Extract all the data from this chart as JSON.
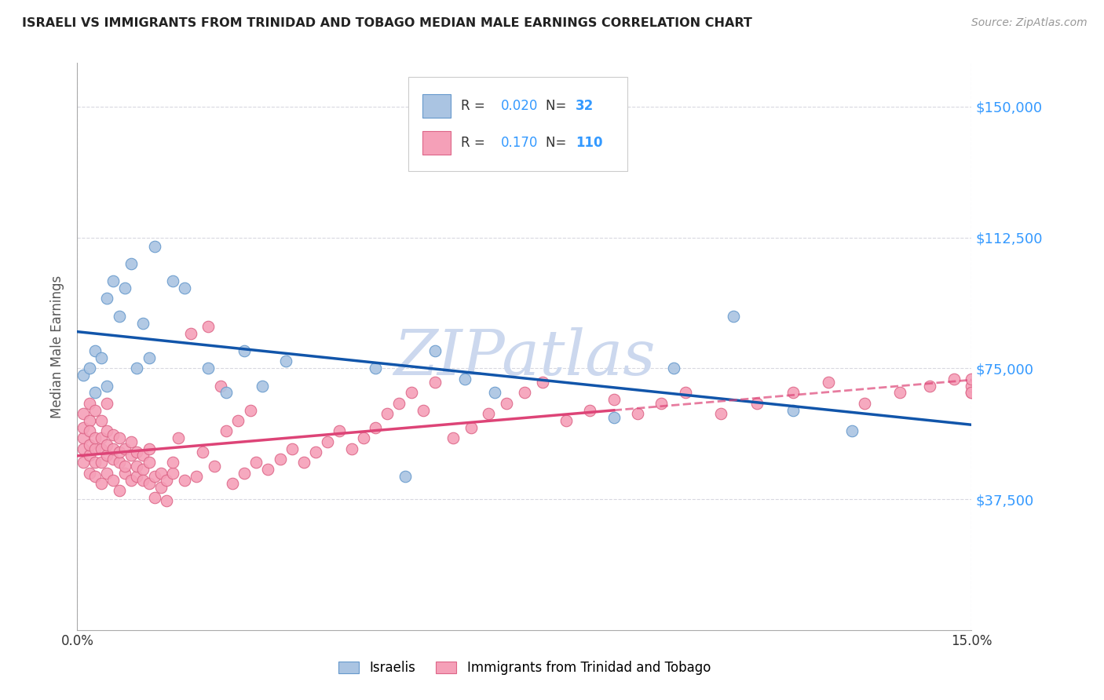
{
  "title": "ISRAELI VS IMMIGRANTS FROM TRINIDAD AND TOBAGO MEDIAN MALE EARNINGS CORRELATION CHART",
  "source": "Source: ZipAtlas.com",
  "ylabel": "Median Male Earnings",
  "xlabel_ticks": [
    "0.0%",
    "15.0%"
  ],
  "ytick_labels": [
    "$37,500",
    "$75,000",
    "$112,500",
    "$150,000"
  ],
  "ytick_values": [
    37500,
    75000,
    112500,
    150000
  ],
  "ymin": 0,
  "ymax": 162500,
  "xmin": 0.0,
  "xmax": 0.15,
  "R_israeli": 0.02,
  "N_israeli": 32,
  "R_trinidad": 0.17,
  "N_trinidad": 110,
  "color_israeli": "#aac4e2",
  "color_israeli_edge": "#6699cc",
  "color_israeli_line": "#1155aa",
  "color_trinidad": "#f5a0b8",
  "color_trinidad_edge": "#dd6688",
  "color_trinidad_line": "#dd4477",
  "background_color": "#ffffff",
  "grid_color": "#d8d8e0",
  "watermark": "ZIPatlas",
  "watermark_color": "#ccd8ee",
  "israeli_x": [
    0.001,
    0.002,
    0.003,
    0.003,
    0.004,
    0.005,
    0.005,
    0.006,
    0.007,
    0.008,
    0.009,
    0.01,
    0.011,
    0.012,
    0.013,
    0.016,
    0.018,
    0.022,
    0.025,
    0.028,
    0.031,
    0.035,
    0.05,
    0.055,
    0.06,
    0.065,
    0.07,
    0.09,
    0.1,
    0.11,
    0.12,
    0.13
  ],
  "israeli_y": [
    73000,
    75000,
    80000,
    68000,
    78000,
    70000,
    95000,
    100000,
    90000,
    98000,
    105000,
    75000,
    88000,
    78000,
    110000,
    100000,
    98000,
    75000,
    68000,
    80000,
    70000,
    77000,
    75000,
    44000,
    80000,
    72000,
    68000,
    61000,
    75000,
    90000,
    63000,
    57000
  ],
  "trinidad_x": [
    0.001,
    0.001,
    0.001,
    0.001,
    0.001,
    0.002,
    0.002,
    0.002,
    0.002,
    0.002,
    0.002,
    0.003,
    0.003,
    0.003,
    0.003,
    0.003,
    0.004,
    0.004,
    0.004,
    0.004,
    0.004,
    0.005,
    0.005,
    0.005,
    0.005,
    0.005,
    0.006,
    0.006,
    0.006,
    0.006,
    0.007,
    0.007,
    0.007,
    0.007,
    0.008,
    0.008,
    0.008,
    0.009,
    0.009,
    0.009,
    0.01,
    0.01,
    0.01,
    0.011,
    0.011,
    0.011,
    0.012,
    0.012,
    0.012,
    0.013,
    0.013,
    0.014,
    0.014,
    0.015,
    0.015,
    0.016,
    0.016,
    0.017,
    0.018,
    0.019,
    0.02,
    0.021,
    0.022,
    0.023,
    0.024,
    0.025,
    0.026,
    0.027,
    0.028,
    0.029,
    0.03,
    0.032,
    0.034,
    0.036,
    0.038,
    0.04,
    0.042,
    0.044,
    0.046,
    0.048,
    0.05,
    0.052,
    0.054,
    0.056,
    0.058,
    0.06,
    0.063,
    0.066,
    0.069,
    0.072,
    0.075,
    0.078,
    0.082,
    0.086,
    0.09,
    0.094,
    0.098,
    0.102,
    0.108,
    0.114,
    0.12,
    0.126,
    0.132,
    0.138,
    0.143,
    0.147,
    0.15,
    0.15,
    0.15,
    0.15
  ],
  "trinidad_y": [
    55000,
    58000,
    48000,
    62000,
    52000,
    50000,
    45000,
    60000,
    53000,
    57000,
    65000,
    52000,
    55000,
    48000,
    63000,
    44000,
    52000,
    55000,
    48000,
    60000,
    42000,
    50000,
    53000,
    57000,
    45000,
    65000,
    49000,
    52000,
    56000,
    43000,
    48000,
    51000,
    55000,
    40000,
    45000,
    52000,
    47000,
    43000,
    50000,
    54000,
    44000,
    51000,
    47000,
    46000,
    43000,
    50000,
    42000,
    48000,
    52000,
    38000,
    44000,
    41000,
    45000,
    37000,
    43000,
    45000,
    48000,
    55000,
    43000,
    85000,
    44000,
    51000,
    87000,
    47000,
    70000,
    57000,
    42000,
    60000,
    45000,
    63000,
    48000,
    46000,
    49000,
    52000,
    48000,
    51000,
    54000,
    57000,
    52000,
    55000,
    58000,
    62000,
    65000,
    68000,
    63000,
    71000,
    55000,
    58000,
    62000,
    65000,
    68000,
    71000,
    60000,
    63000,
    66000,
    62000,
    65000,
    68000,
    62000,
    65000,
    68000,
    71000,
    65000,
    68000,
    70000,
    72000,
    68000,
    70000,
    72000,
    68000
  ]
}
